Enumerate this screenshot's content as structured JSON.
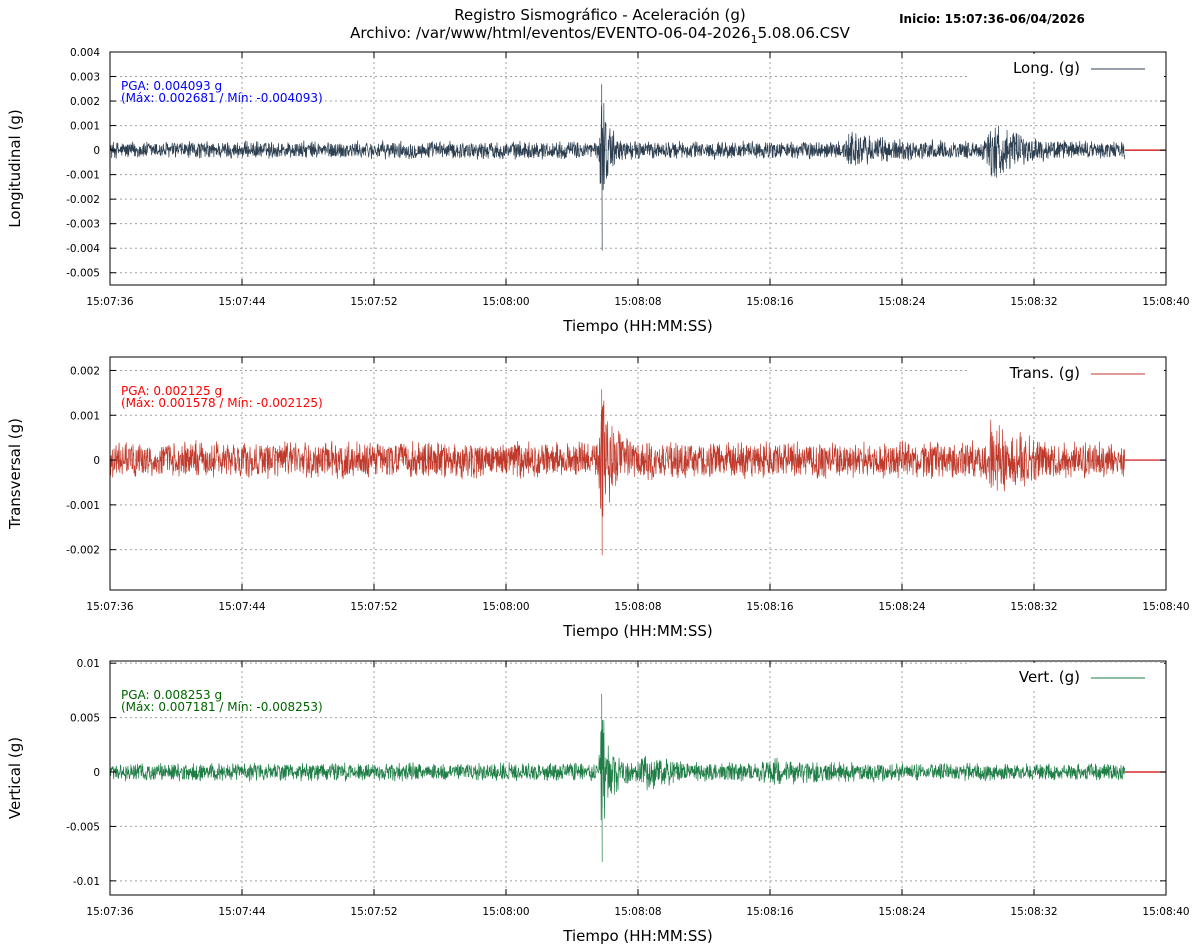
{
  "header": {
    "title_line1": "Registro Sismográfico - Aceleración (g)",
    "title_line2_prefix": "Archivo: /var/www/html/eventos/EVENTO-06-04-2026",
    "title_line2_sub": "1",
    "title_line2_suffix": "5.08.06.CSV",
    "inicio": "Inicio: 15:07:36-06/04/2026"
  },
  "chart_data": [
    {
      "type": "line",
      "ylabel": "Longitudinal (g)",
      "xlabel": "Tiempo (HH:MM:SS)",
      "legend": "Long. (g)",
      "legend_position": "top-right",
      "color": "#2c3e50",
      "annotation_color": "#0000ff",
      "pga_text": "PGA: 0.004093 g",
      "range_text": "(Máx: 0.002681 / Mín: -0.004093)",
      "pga": 0.004093,
      "max": 0.002681,
      "min": -0.004093,
      "ylim": [
        -0.0055,
        0.004
      ],
      "yticks": [
        0.004,
        0.003,
        0.002,
        0.001,
        0,
        -0.001,
        -0.002,
        -0.003,
        -0.004,
        -0.005
      ],
      "ytick_labels": [
        "0.004",
        "0.003",
        "0.002",
        "0.001",
        "0",
        "-0.001",
        "-0.002",
        "-0.003",
        "-0.004",
        "-0.005"
      ],
      "grid": true,
      "noise_amplitude": 0.0004,
      "bursts": [
        {
          "t": 29.8,
          "amp": 0.0028,
          "width": 0.4
        },
        {
          "t": 45.0,
          "amp": 0.0005,
          "width": 2.0
        },
        {
          "t": 53.5,
          "amp": 0.0011,
          "width": 1.3
        }
      ]
    },
    {
      "type": "line",
      "ylabel": "Transversal (g)",
      "xlabel": "Tiempo (HH:MM:SS)",
      "legend": "Trans. (g)",
      "legend_position": "top-right",
      "color": "#c0392b",
      "annotation_color": "#ff0000",
      "pga_text": "PGA: 0.002125 g",
      "range_text": "(Máx: 0.001578 / Mín: -0.002125)",
      "pga": 0.002125,
      "max": 0.001578,
      "min": -0.002125,
      "ylim": [
        -0.0029,
        0.0023
      ],
      "yticks": [
        0.002,
        0.001,
        0,
        -0.001,
        -0.002
      ],
      "ytick_labels": [
        "0.002",
        "0.001",
        "0",
        "-0.001",
        "-0.002"
      ],
      "grid": true,
      "noise_amplitude": 0.00045,
      "bursts": [
        {
          "t": 29.8,
          "amp": 0.0015,
          "width": 0.6
        },
        {
          "t": 53.5,
          "amp": 0.00065,
          "width": 1.4
        }
      ]
    },
    {
      "type": "line",
      "ylabel": "Vertical (g)",
      "xlabel": "Tiempo (HH:MM:SS)",
      "legend": "Vert. (g)",
      "legend_position": "top-right",
      "color": "#1e7e46",
      "annotation_color": "#006400",
      "pga_text": "PGA: 0.008253 g",
      "range_text": "(Máx: 0.007181 / Mín: -0.008253)",
      "pga": 0.008253,
      "max": 0.007181,
      "min": -0.008253,
      "ylim": [
        -0.0113,
        0.0102
      ],
      "yticks": [
        0.01,
        0.005,
        0,
        -0.005,
        -0.01
      ],
      "ytick_labels": [
        "0.01",
        "0.005",
        "0",
        "-0.005",
        "-0.01"
      ],
      "grid": true,
      "noise_amplitude": 0.0009,
      "bursts": [
        {
          "t": 29.8,
          "amp": 0.0065,
          "width": 0.5
        },
        {
          "t": 32.5,
          "amp": 0.0011,
          "width": 1.5
        },
        {
          "t": 40.0,
          "amp": 0.0006,
          "width": 2.5
        }
      ]
    }
  ],
  "time_axis": {
    "start_label": "15:07:36",
    "xlim_seconds": [
      0,
      64
    ],
    "data_end_seconds": 61.5,
    "xticks_seconds": [
      0,
      8,
      16,
      24,
      32,
      40,
      48,
      56,
      64
    ],
    "xtick_labels": [
      "15:07:36",
      "15:07:44",
      "15:07:52",
      "15:08:00",
      "15:08:08",
      "15:08:16",
      "15:08:24",
      "15:08:32",
      "15:08:40"
    ]
  },
  "baseline_color": "#cc0000"
}
